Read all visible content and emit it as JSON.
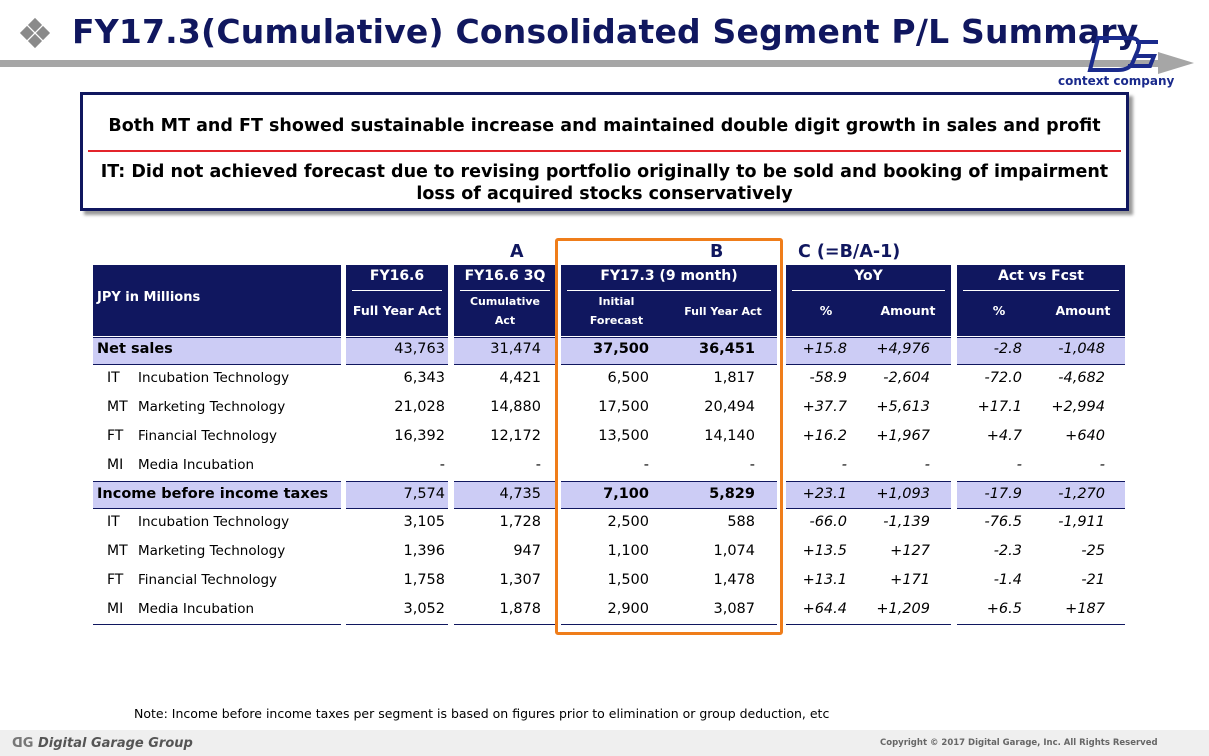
{
  "header": {
    "title": "FY17.3(Cumulative) Consolidated Segment P/L Summary",
    "logo_text": "context company"
  },
  "summary": {
    "line1": "Both MT and FT showed sustainable increase and maintained double digit growth in sales and profit",
    "line2": "IT: Did not achieved forecast due to revising portfolio originally to be sold  and booking of impairment loss of acquired stocks conservatively"
  },
  "markers": {
    "a": "A",
    "b": "B",
    "c": "C (=B/A-1)"
  },
  "table": {
    "unit_label": "JPY in Millions",
    "groups": {
      "fy16_6": "FY16.6",
      "fy16_6_3q": "FY16.6 3Q",
      "fy17_3": "FY17.3 (9 month)",
      "yoy": "YoY",
      "act_vs_fcst": "Act vs Fcst"
    },
    "subheaders": {
      "full_year_act_1": "Full Year Act",
      "cumulative_act_1": "Cumulative",
      "cumulative_act_2": "Act",
      "initial_forecast_1": "Initial",
      "initial_forecast_2": "Forecast",
      "full_year_act_2": "Full Year Act",
      "yoy_pct": "%",
      "yoy_amount": "Amount",
      "fcst_pct": "%",
      "fcst_amount": "Amount"
    },
    "rows": [
      {
        "code": "",
        "label": "Net sales",
        "fy16": "43,763",
        "q3": "31,474",
        "init": "37,500",
        "act": "36,451",
        "yoy_pct": "+15.8",
        "yoy_amt": "+4,976",
        "f_pct": "-2.8",
        "f_amt": "-1,048"
      },
      {
        "code": "IT",
        "label": "Incubation Technology",
        "fy16": "6,343",
        "q3": "4,421",
        "init": "6,500",
        "act": "1,817",
        "yoy_pct": "-58.9",
        "yoy_amt": "-2,604",
        "f_pct": "-72.0",
        "f_amt": "-4,682"
      },
      {
        "code": "MT",
        "label": "Marketing Technology",
        "fy16": "21,028",
        "q3": "14,880",
        "init": "17,500",
        "act": "20,494",
        "yoy_pct": "+37.7",
        "yoy_amt": "+5,613",
        "f_pct": "+17.1",
        "f_amt": "+2,994"
      },
      {
        "code": "FT",
        "label": "Financial Technology",
        "fy16": "16,392",
        "q3": "12,172",
        "init": "13,500",
        "act": "14,140",
        "yoy_pct": "+16.2",
        "yoy_amt": "+1,967",
        "f_pct": "+4.7",
        "f_amt": "+640"
      },
      {
        "code": "MI",
        "label": "Media Incubation",
        "fy16": "-",
        "q3": "-",
        "init": "-",
        "act": "-",
        "yoy_pct": "-",
        "yoy_amt": "-",
        "f_pct": "-",
        "f_amt": "-"
      },
      {
        "code": "",
        "label": "Income before income taxes",
        "fy16": "7,574",
        "q3": "4,735",
        "init": "7,100",
        "act": "5,829",
        "yoy_pct": "+23.1",
        "yoy_amt": "+1,093",
        "f_pct": "-17.9",
        "f_amt": "-1,270"
      },
      {
        "code": "IT",
        "label": "Incubation Technology",
        "fy16": "3,105",
        "q3": "1,728",
        "init": "2,500",
        "act": "588",
        "yoy_pct": "-66.0",
        "yoy_amt": "-1,139",
        "f_pct": "-76.5",
        "f_amt": "-1,911"
      },
      {
        "code": "MT",
        "label": "Marketing Technology",
        "fy16": "1,396",
        "q3": "947",
        "init": "1,100",
        "act": "1,074",
        "yoy_pct": "+13.5",
        "yoy_amt": "+127",
        "f_pct": "-2.3",
        "f_amt": "-25"
      },
      {
        "code": "FT",
        "label": "Financial Technology",
        "fy16": "1,758",
        "q3": "1,307",
        "init": "1,500",
        "act": "1,478",
        "yoy_pct": "+13.1",
        "yoy_amt": "+171",
        "f_pct": "-1.4",
        "f_amt": "-21"
      },
      {
        "code": "MI",
        "label": "Media Incubation",
        "fy16": "3,052",
        "q3": "1,878",
        "init": "2,900",
        "act": "3,087",
        "yoy_pct": "+64.4",
        "yoy_amt": "+1,209",
        "f_pct": "+6.5",
        "f_amt": "+187"
      }
    ]
  },
  "footer": {
    "note": "Note: Income before income taxes per segment is based on figures prior to elimination or group deduction, etc",
    "company": "Digital Garage Group",
    "copyright": "Copyright © 2017 Digital Garage, Inc. All Rights Reserved"
  },
  "colors": {
    "navy": "#10175f",
    "band": "#ccccf5",
    "highlight": "#ef7d1a",
    "accent_red": "#e3242b"
  }
}
